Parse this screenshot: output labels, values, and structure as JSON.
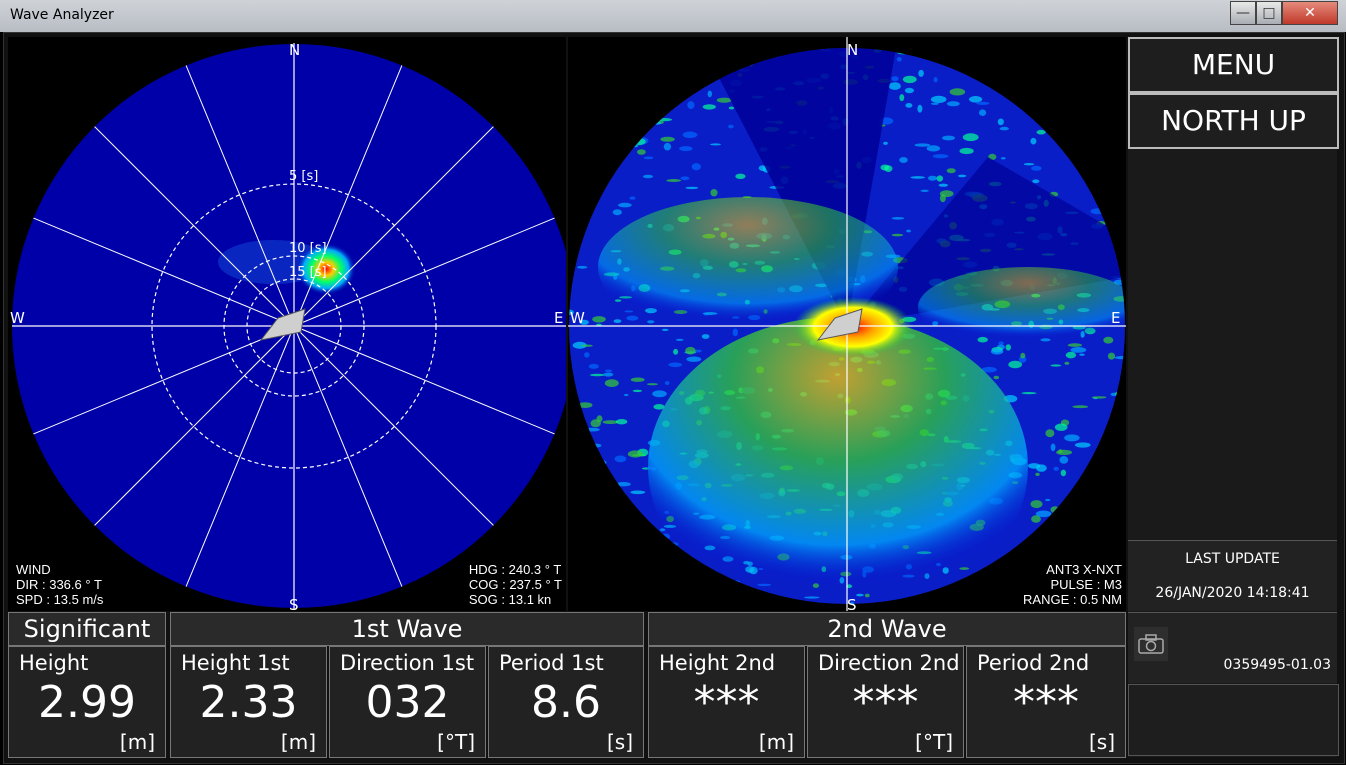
{
  "window": {
    "title": "Wave Analyzer"
  },
  "polar": {
    "labels": {
      "n": "N",
      "s": "S",
      "e": "E",
      "w": "W"
    },
    "rings": {
      "r5": "5 [s]",
      "r10": "10 [s]",
      "r15": "15 [s]"
    },
    "wind": {
      "title": "WIND",
      "dir": "DIR : 336.6 ° T",
      "spd": "SPD : 13.5 m/s"
    },
    "nav": {
      "hdg": "HDG : 240.3 ° T",
      "cog": "COG : 237.5 ° T",
      "sog": "SOG :   13.1 kn"
    }
  },
  "echo": {
    "labels": {
      "n": "N",
      "s": "S",
      "e": "E",
      "w": "W"
    },
    "ant": "ANT3 X-NXT",
    "pulse": "PULSE : M3",
    "range": "RANGE : 0.5 NM"
  },
  "sidebar": {
    "menu": "MENU",
    "north_up": "NORTH UP",
    "last_update_label": "LAST UPDATE",
    "last_update_value": "26/JAN/2020 14:18:41",
    "version": "0359495-01.03"
  },
  "groups": {
    "significant": "Significant",
    "first": "1st Wave",
    "second": "2nd Wave"
  },
  "cells": [
    {
      "label": "Height",
      "value": "2.99",
      "unit": "[m]"
    },
    {
      "label": "Height 1st",
      "value": "2.33",
      "unit": "[m]"
    },
    {
      "label": "Direction 1st",
      "value": "032",
      "unit": "[°T]"
    },
    {
      "label": "Period 1st",
      "value": "8.6",
      "unit": "[s]"
    },
    {
      "label": "Height 2nd",
      "value": "***",
      "unit": "[m]"
    },
    {
      "label": "Direction 2nd",
      "value": "***",
      "unit": "[°T]"
    },
    {
      "label": "Period 2nd",
      "value": "***",
      "unit": "[s]"
    }
  ],
  "colors": {
    "ocean": "#0000a8",
    "grid": "#ffffff",
    "echo_low": "#0033ff",
    "echo_mid": "#00cc66",
    "echo_high": "#ff2200"
  }
}
